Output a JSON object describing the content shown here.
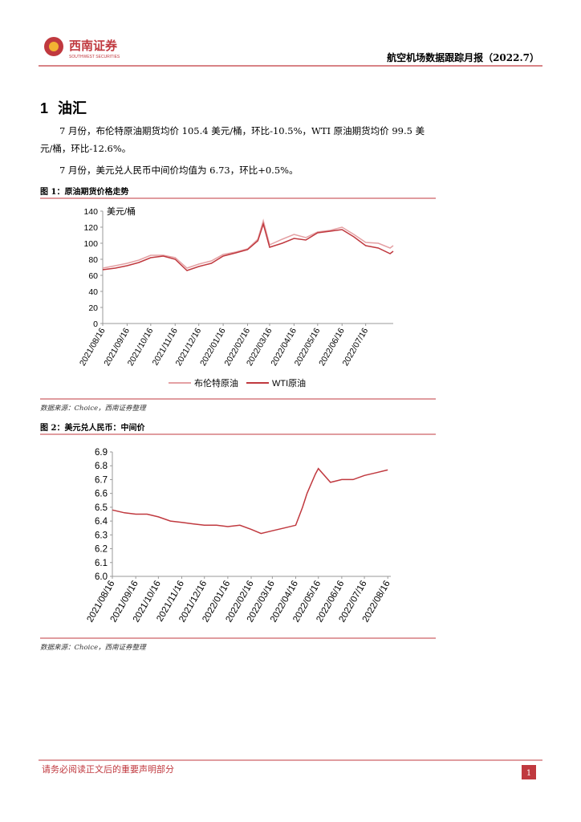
{
  "header": {
    "logo_cn": "西南证券",
    "logo_en": "SOUTHWEST SECURITIES",
    "report_title": "航空机场数据跟踪月报（2022.7）"
  },
  "section": {
    "number": "1",
    "title": "油汇"
  },
  "paragraphs": [
    "7 月份，布伦特原油期货均价 105.4 美元/桶，环比-10.5%，WTI 原油期货均价 99.5 美元/桶，环比-12.6%。",
    "7 月份，美元兑人民币中间价均值为 6.73，环比+0.5%。"
  ],
  "figures": [
    {
      "caption": "图 1：原油期货价格走势",
      "source": "数据来源：Choice，西南证券整理"
    },
    {
      "caption": "图 2：美元兑人民币：中间价",
      "source": "数据来源：Choice，西南证券整理"
    }
  ],
  "footer": {
    "notice": "请务必阅读正文后的重要声明部分",
    "page": "1"
  },
  "chart_data": [
    {
      "type": "line",
      "y_unit": "美元/桶",
      "x": [
        "2021/08/16",
        "2021/09/01",
        "2021/09/16",
        "2021/10/01",
        "2021/10/16",
        "2021/11/01",
        "2021/11/16",
        "2021/12/01",
        "2021/12/16",
        "2022/01/01",
        "2022/01/16",
        "2022/02/01",
        "2022/02/16",
        "2022/03/01",
        "2022/03/08",
        "2022/03/16",
        "2022/04/01",
        "2022/04/16",
        "2022/05/01",
        "2022/05/16",
        "2022/06/01",
        "2022/06/16",
        "2022/07/01",
        "2022/07/16",
        "2022/08/01",
        "2022/08/16",
        "2022/08/20"
      ],
      "series": [
        {
          "name": "布伦特原油",
          "color": "#e4a0a3",
          "values": [
            69,
            72,
            75,
            79,
            85,
            85,
            82,
            69,
            74,
            78,
            86,
            89,
            93,
            105,
            128,
            98,
            105,
            111,
            107,
            114,
            116,
            120,
            111,
            101,
            100,
            94,
            97
          ]
        },
        {
          "name": "WTI原油",
          "color": "#c0393f",
          "values": [
            67,
            69,
            72,
            76,
            82,
            84,
            80,
            66,
            71,
            75,
            84,
            88,
            92,
            103,
            124,
            95,
            100,
            106,
            104,
            113,
            115,
            117,
            108,
            97,
            94,
            87,
            90
          ]
        }
      ],
      "xlim": [
        "2021/08/16",
        "2022/08/20"
      ],
      "xticks": [
        "2021/08/16",
        "2021/09/16",
        "2021/10/16",
        "2021/11/16",
        "2021/12/16",
        "2022/01/16",
        "2022/02/16",
        "2022/03/16",
        "2022/04/16",
        "2022/05/16",
        "2022/06/16",
        "2022/07/16"
      ],
      "ylim": [
        0,
        140
      ],
      "yticks": [
        0,
        20,
        40,
        60,
        80,
        100,
        120,
        140
      ],
      "legend": "bottom"
    },
    {
      "type": "line",
      "x": [
        "2021/08/16",
        "2021/09/01",
        "2021/09/16",
        "2021/10/01",
        "2021/10/16",
        "2021/11/01",
        "2021/11/16",
        "2021/12/01",
        "2021/12/16",
        "2022/01/01",
        "2022/01/16",
        "2022/02/01",
        "2022/02/16",
        "2022/03/01",
        "2022/03/16",
        "2022/04/01",
        "2022/04/16",
        "2022/04/25",
        "2022/05/01",
        "2022/05/12",
        "2022/05/16",
        "2022/06/01",
        "2022/06/16",
        "2022/07/01",
        "2022/07/16",
        "2022/08/01",
        "2022/08/16"
      ],
      "series": [
        {
          "name": "美元兑人民币：中间价",
          "color": "#c0393f",
          "values": [
            6.48,
            6.46,
            6.45,
            6.45,
            6.43,
            6.4,
            6.39,
            6.38,
            6.37,
            6.37,
            6.36,
            6.37,
            6.34,
            6.31,
            6.33,
            6.35,
            6.37,
            6.5,
            6.6,
            6.74,
            6.78,
            6.68,
            6.7,
            6.7,
            6.73,
            6.75,
            6.77
          ]
        }
      ],
      "xlim": [
        "2021/08/16",
        "2022/08/20"
      ],
      "xticks": [
        "2021/08/16",
        "2021/09/16",
        "2021/10/16",
        "2021/11/16",
        "2021/12/16",
        "2022/01/16",
        "2022/02/16",
        "2022/03/16",
        "2022/04/16",
        "2022/05/16",
        "2022/06/16",
        "2022/07/16",
        "2022/08/16"
      ],
      "ylim": [
        6.0,
        6.9
      ],
      "yticks": [
        {
          "value": 6.0,
          "label": "6.0"
        },
        6.1,
        6.2,
        6.3,
        6.4,
        6.5,
        6.6,
        6.7,
        6.8,
        6.9
      ]
    }
  ]
}
